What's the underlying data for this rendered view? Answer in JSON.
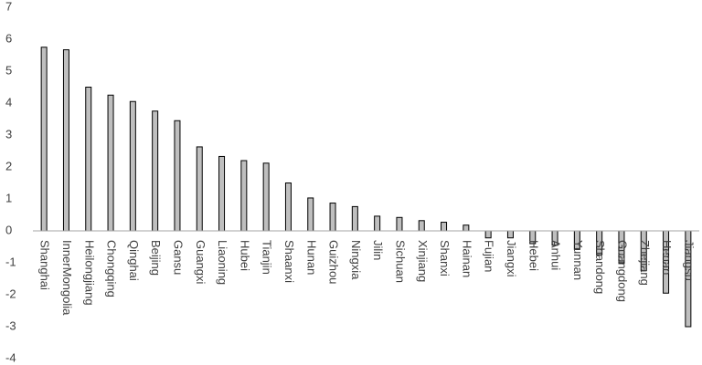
{
  "chart_data": {
    "type": "bar",
    "categories": [
      "Shanghai",
      "InnerMongolia",
      "Heilongjiang",
      "Chongqing",
      "Qinghai",
      "Beijing",
      "Gansu",
      "Guangxi",
      "Liaoning",
      "Hubei",
      "Tianjin",
      "Shaanxi",
      "Hunan",
      "Guizhou",
      "Ningxia",
      "Jilin",
      "Sichuan",
      "Xinjiang",
      "Shanxi",
      "Hainan",
      "Fujian",
      "Jiangxi",
      "Hebei",
      "Anhui",
      "Yunnan",
      "Shandong",
      "Guangdong",
      "Zhejiang",
      "Henan",
      "Jiangsu"
    ],
    "values": [
      5.75,
      5.67,
      4.5,
      4.25,
      4.05,
      3.75,
      3.45,
      2.63,
      2.33,
      2.2,
      2.12,
      1.5,
      1.03,
      0.87,
      0.76,
      0.46,
      0.42,
      0.32,
      0.27,
      0.18,
      -0.22,
      -0.22,
      -0.4,
      -0.45,
      -0.58,
      -0.75,
      -1.0,
      -1.25,
      -1.95,
      -3.0
    ],
    "color": "#bfbfbf",
    "ylim": [
      -4,
      7
    ],
    "yticks": [
      -4,
      -3,
      -2,
      -1,
      0,
      1,
      2,
      3,
      4,
      5,
      6,
      7
    ],
    "grid": false
  }
}
